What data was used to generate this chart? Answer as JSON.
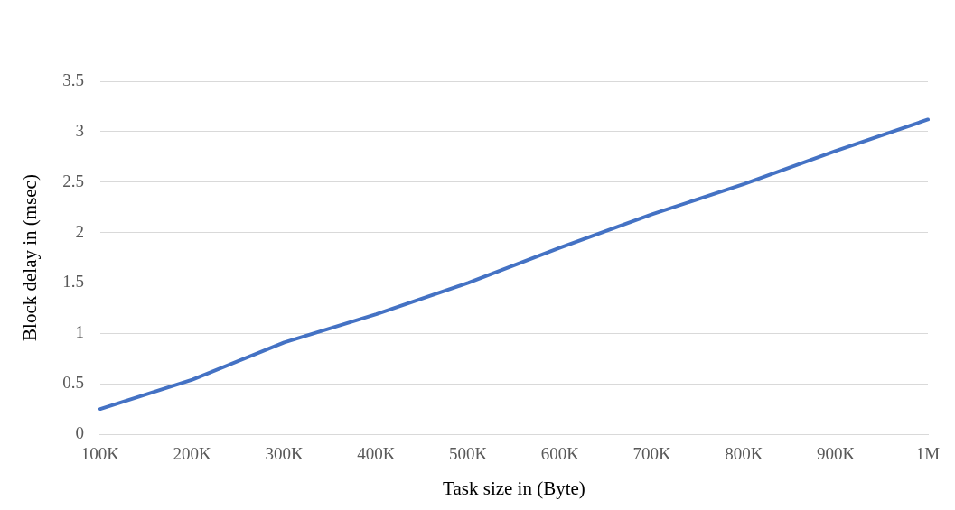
{
  "chart_data": {
    "type": "line",
    "xlabel": "Task size in (Byte)",
    "ylabel": "Block delay in (msec)",
    "categories": [
      "100K",
      "200K",
      "300K",
      "400K",
      "500K",
      "600K",
      "700K",
      "800K",
      "900K",
      "1M"
    ],
    "series": [
      {
        "color": "#4472c4",
        "values": [
          0.25,
          0.54,
          0.91,
          1.19,
          1.5,
          1.85,
          2.18,
          2.48,
          2.81,
          3.12
        ]
      }
    ],
    "ylim": [
      0,
      3.5
    ],
    "yticks": [
      0,
      0.5,
      1,
      1.5,
      2,
      2.5,
      3,
      3.5
    ],
    "grid": "y",
    "legend": false,
    "marker": "none",
    "line_style": "solid"
  }
}
